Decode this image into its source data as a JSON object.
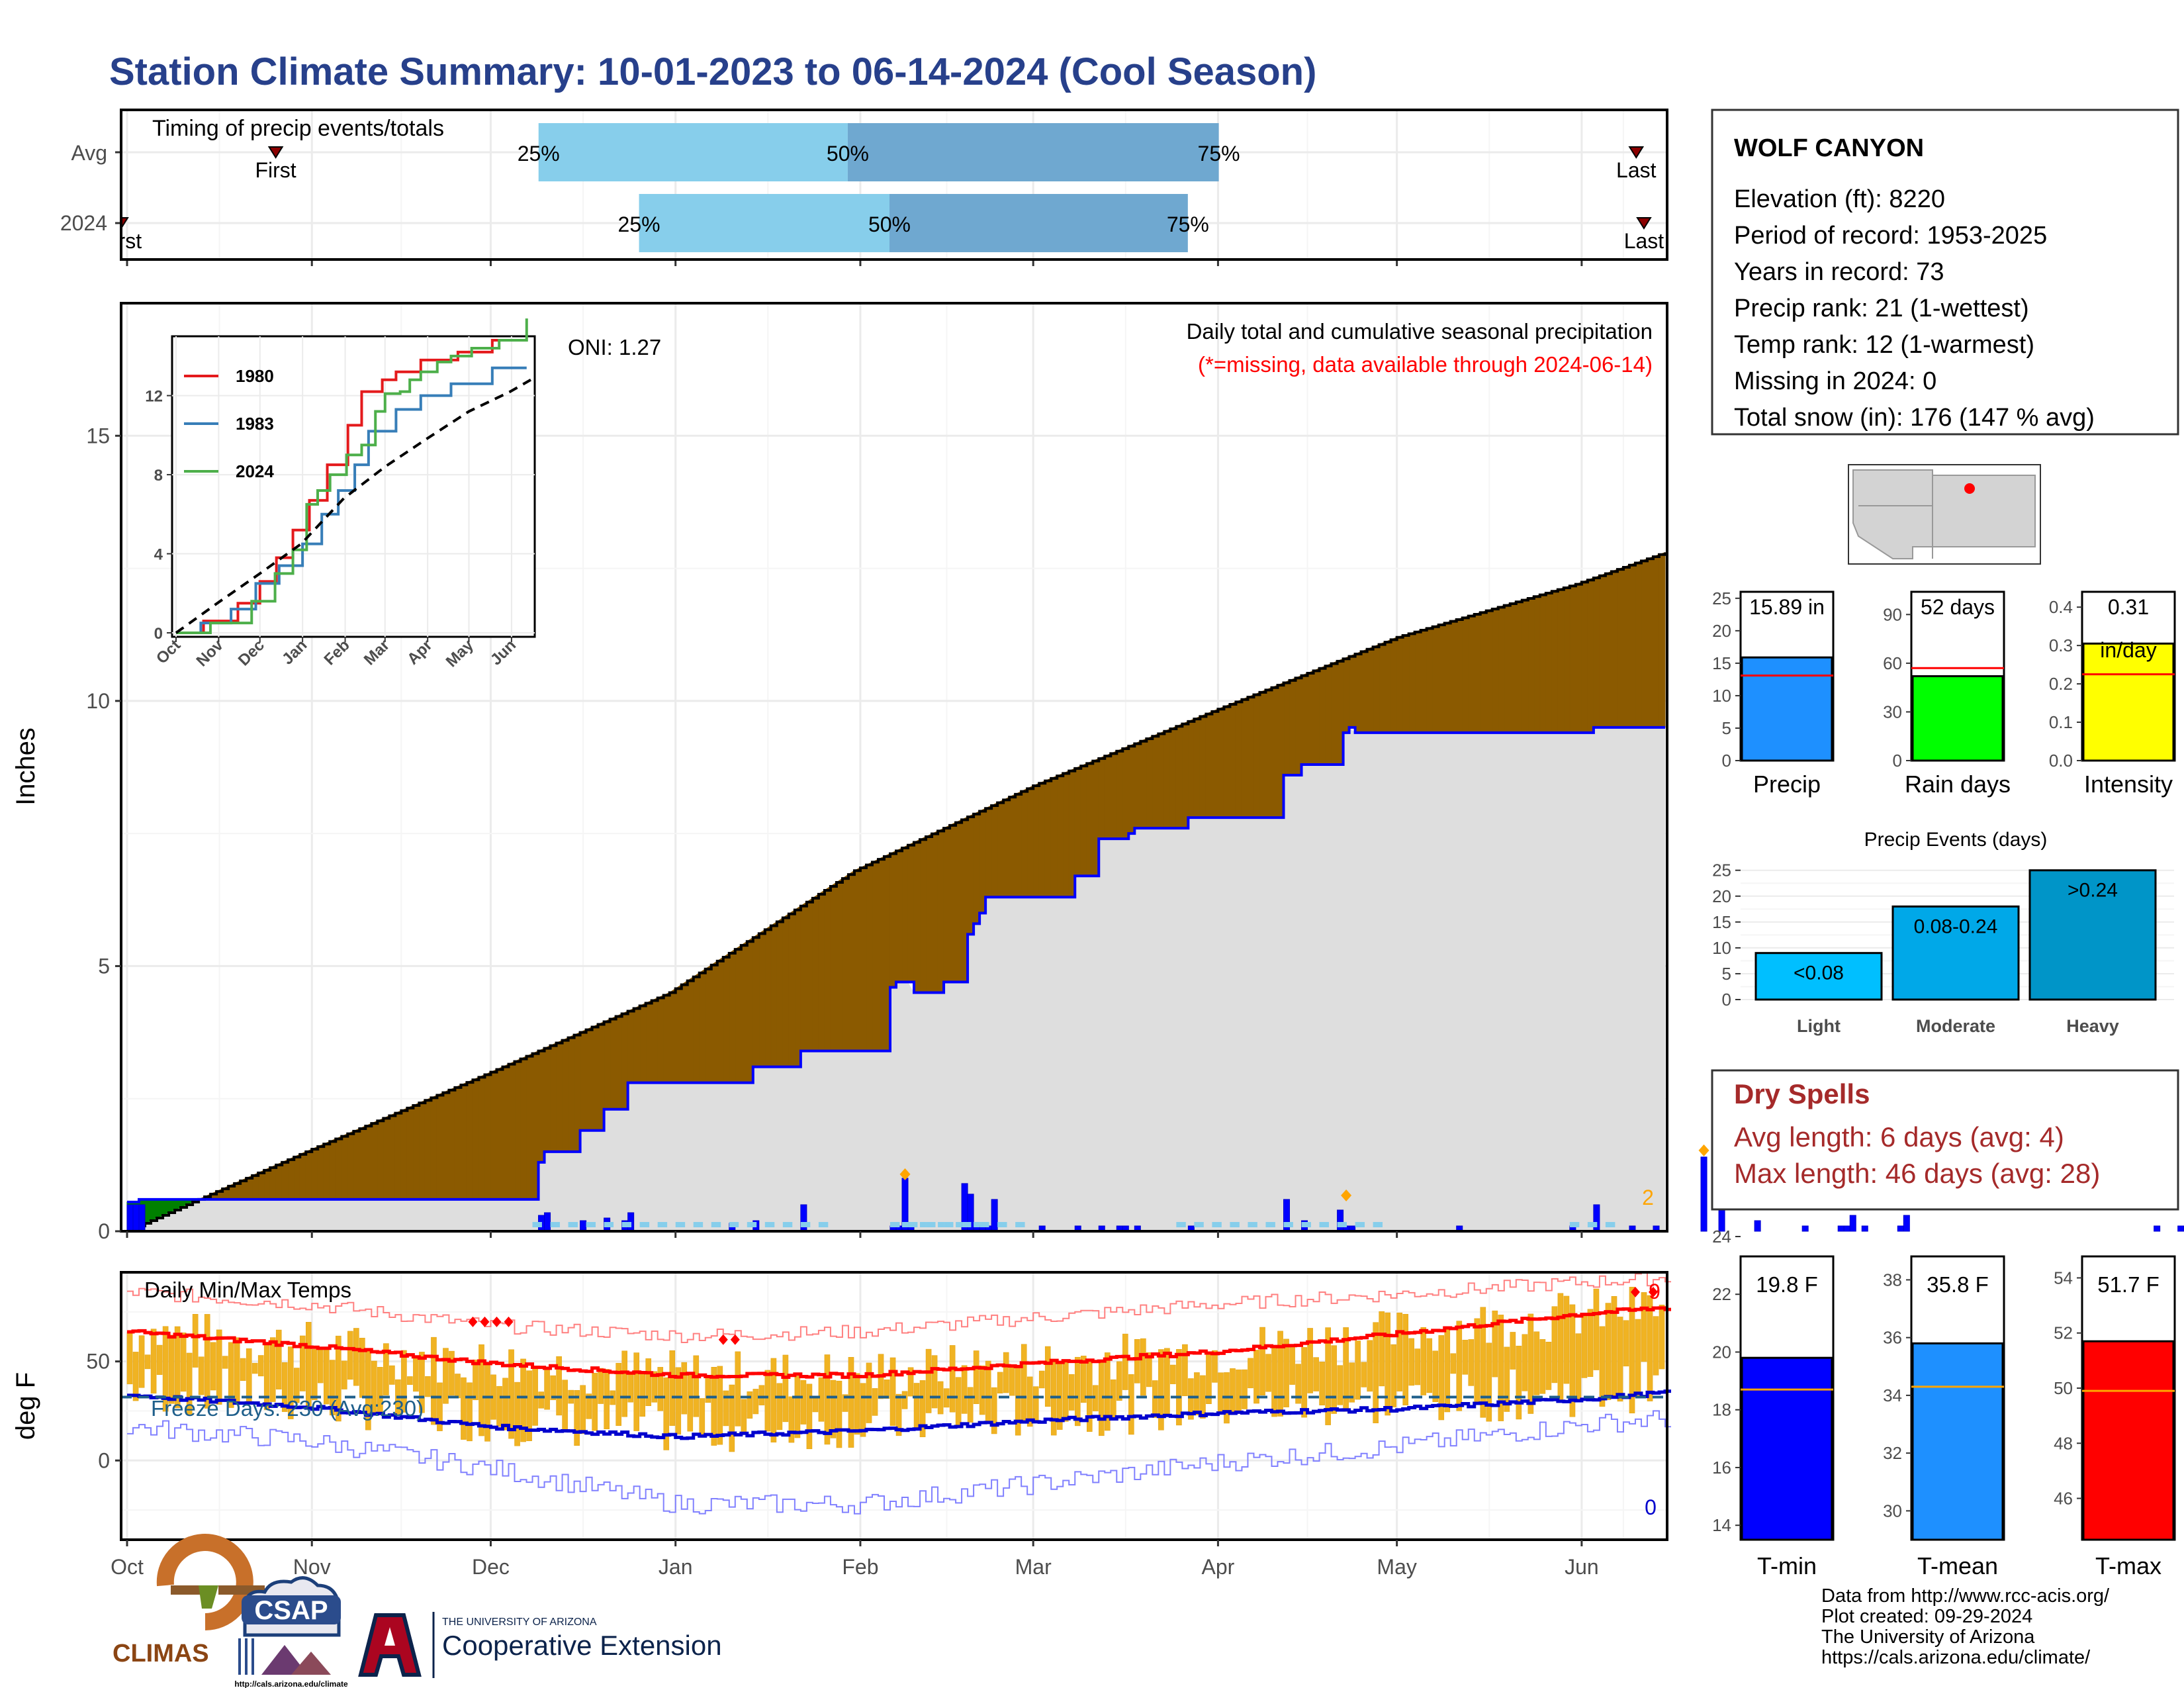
{
  "title": "Station Climate Summary: 10-01-2023 to 06-14-2024 (Cool Season)",
  "timing": {
    "label": "Timing of precip events/totals",
    "rows": [
      {
        "name": "Avg",
        "first_label": "First",
        "last_label": "Last",
        "first": 0.1,
        "last": 0.98,
        "p25": 0.27,
        "p50": 0.47,
        "p75": 0.71
      },
      {
        "name": "2024",
        "first_label": "First",
        "last_label": "Last",
        "first": 0.0,
        "last": 0.985,
        "p25": 0.335,
        "p50": 0.497,
        "p75": 0.69
      }
    ],
    "pct_labels": [
      "25%",
      "50%",
      "75%"
    ]
  },
  "precip": {
    "ylabel": "Inches",
    "annotation": "Daily total and cumulative seasonal precipitation",
    "missing_note": "(*=missing, data available through 2024-06-14)",
    "oni": "ONI: 1.27",
    "end_count": "2",
    "yticks": [
      "0",
      "5",
      "10",
      "15"
    ],
    "months": [
      "Oct",
      "Nov",
      "Dec",
      "Jan",
      "Feb",
      "Mar",
      "Apr",
      "May",
      "Jun"
    ]
  },
  "temps": {
    "label": "Daily Min/Max Temps",
    "ylabel": "deg F",
    "freeze": "Freeze Days: 230 (Avg:230)",
    "high_count": "9",
    "low_count": "0",
    "yticks": [
      "0",
      "50"
    ]
  },
  "inset": {
    "yticks": [
      "0",
      "4",
      "8",
      "12"
    ],
    "months": [
      "Oct",
      "Nov",
      "Dec",
      "Jan",
      "Feb",
      "Mar",
      "Apr",
      "May",
      "Jun"
    ],
    "legend": [
      {
        "name": "1980",
        "color": "#e41a1c"
      },
      {
        "name": "1983",
        "color": "#377eb8"
      },
      {
        "name": "2024",
        "color": "#4daf4a"
      }
    ]
  },
  "station": {
    "name": "WOLF CANYON",
    "lines": [
      "Elevation (ft): 8220",
      "Period of record: 1953-2025",
      "Years in record: 73",
      "Precip rank: 21 (1-wettest)",
      "Temp rank: 12 (1-warmest)",
      "Missing in 2024: 0",
      "Total snow (in): 176 (147 % avg)"
    ]
  },
  "mini_bars": [
    {
      "name": "Precip",
      "value_label": "15.89 in",
      "value": 15.89,
      "avg": 13.1,
      "ymax": 26,
      "yticks": [
        "0",
        "5",
        "10",
        "15",
        "20",
        "25"
      ],
      "color": "#1e90ff"
    },
    {
      "name": "Rain days",
      "value_label": "52 days",
      "value": 52,
      "avg": 57,
      "ymax": 104,
      "yticks": [
        "0",
        "30",
        "60",
        "90"
      ],
      "color": "#00ff00"
    },
    {
      "name": "Intensity",
      "value_label": "0.31",
      "unit_label": "in/day",
      "value": 0.305,
      "avg": 0.225,
      "ymax": 0.44,
      "yticks": [
        "0.0",
        "0.1",
        "0.2",
        "0.3",
        "0.4"
      ],
      "color": "#ffff00"
    }
  ],
  "events": {
    "title": "Precip Events (days)",
    "yticks": [
      "0",
      "5",
      "10",
      "15",
      "20",
      "25"
    ],
    "bars": [
      {
        "name": "Light",
        "label": "<0.08",
        "value": 9,
        "color": "#00bfff"
      },
      {
        "name": "Moderate",
        "label": "0.08-0.24",
        "value": 18,
        "color": "#00a8e8"
      },
      {
        "name": "Heavy",
        "label": ">0.24",
        "value": 25,
        "color": "#0095c8"
      }
    ]
  },
  "dry_spells": {
    "title": "Dry Spells",
    "avg": "Avg length: 6 days (avg: 4)",
    "max": "Max length: 46 days (avg: 28)"
  },
  "temp_bars": [
    {
      "name": "T-min",
      "value_label": "19.8 F",
      "value": 19.8,
      "avg": 18.7,
      "ymin": 13.5,
      "ymax": 24,
      "yticks": [
        "14",
        "16",
        "18",
        "20",
        "22",
        "24"
      ],
      "color": "#0000ff"
    },
    {
      "name": "T-mean",
      "value_label": "35.8 F",
      "value": 35.8,
      "avg": 34.3,
      "ymin": 29,
      "ymax": 39.5,
      "yticks": [
        "30",
        "32",
        "34",
        "36",
        "38"
      ],
      "color": "#1e90ff"
    },
    {
      "name": "T-max",
      "value_label": "51.7 F",
      "value": 51.7,
      "avg": 49.9,
      "ymin": 44.5,
      "ymax": 55.5,
      "yticks": [
        "46",
        "48",
        "50",
        "52",
        "54"
      ],
      "color": "#ff0000"
    }
  ],
  "logos": {
    "climas": "CLIMAS",
    "csap": "CSAP",
    "csap_url": "http://cals.arizona.edu/climate",
    "ua_small": "THE UNIVERSITY OF ARIZONA",
    "ua_big": "Cooperative Extension"
  },
  "credits": [
    "Data from http://www.rcc-acis.org/",
    "Plot created: 09-29-2024",
    "The University of Arizona",
    "https://cals.arizona.edu/climate/"
  ],
  "chart_data": [
    {
      "type": "area",
      "title": "Daily total and cumulative seasonal precipitation",
      "ylabel": "Inches",
      "ylim": [
        0,
        17.5
      ],
      "x_unit": "days since 10-01-2023",
      "series": [
        {
          "name": "cumulative",
          "x": [
            0,
            2,
            3,
            21,
            39,
            53,
            69,
            70,
            76,
            80,
            84,
            101,
            105,
            112,
            113,
            127,
            128,
            129,
            131,
            132,
            137,
            140,
            141,
            142,
            143,
            144,
            159,
            163,
            166,
            168,
            169,
            178,
            193,
            194,
            196,
            197,
            204,
            205,
            206,
            223,
            242,
            246,
            263,
            264,
            267,
            273,
            277,
            282,
            286,
            287,
            288,
            289,
            290,
            297,
            298,
            340,
            341,
            344,
            347,
            354,
            356,
            357
          ],
          "y": [
            0.55,
            0.6,
            0.6,
            0.6,
            0.6,
            0.6,
            1.3,
            1.5,
            1.9,
            2.3,
            2.8,
            2.8,
            3.1,
            3.1,
            3.4,
            3.4,
            4.6,
            4.7,
            4.7,
            4.5,
            4.7,
            4.7,
            5.6,
            5.8,
            6.0,
            6.3,
            6.7,
            7.4,
            7.4,
            7.5,
            7.6,
            7.8,
            7.8,
            8.6,
            8.6,
            8.8,
            9.4,
            9.5,
            9.4,
            9.4,
            9.4,
            9.5,
            10.0,
            10.9,
            11.0,
            12.6,
            12.6,
            13.3,
            13.4,
            13.8,
            14.0,
            14.1,
            14.2,
            14.2,
            14.7,
            14.7,
            14.8,
            15.0,
            15.0,
            15.6,
            15.9,
            15.9
          ]
        },
        {
          "name": "average",
          "x": [
            0,
            30,
            61,
            91,
            122,
            152,
            182,
            213,
            243,
            258
          ],
          "y": [
            0.0,
            1.5,
            3.0,
            4.5,
            6.8,
            8.4,
            9.8,
            11.2,
            12.2,
            12.8
          ]
        }
      ],
      "daily": {
        "x": [
          0,
          1,
          2,
          69,
          70,
          76,
          80,
          83,
          84,
          101,
          105,
          113,
          128,
          129,
          130,
          131,
          140,
          141,
          142,
          143,
          144,
          145,
          153,
          159,
          163,
          166,
          167,
          169,
          178,
          194,
          197,
          203,
          204,
          205,
          223,
          242,
          246,
          252,
          256,
          264,
          267,
          273,
          281,
          287,
          288,
          289,
          291,
          297,
          298,
          340,
          344,
          347,
          354,
          356
        ],
        "y": [
          0.5,
          0.5,
          0.5,
          0.3,
          0.35,
          0.2,
          0.25,
          0.2,
          0.35,
          0.15,
          0.2,
          0.5,
          0.1,
          0.1,
          1.0,
          0.1,
          0.9,
          0.7,
          0.1,
          0.1,
          0.1,
          0.6,
          0.1,
          0.1,
          0.1,
          0.1,
          0.1,
          0.1,
          0.1,
          0.6,
          0.2,
          0.4,
          0.1,
          0.1,
          0.1,
          0.1,
          0.5,
          0.1,
          0.1,
          1.4,
          0.6,
          0.2,
          0.1,
          0.1,
          0.1,
          0.3,
          0.1,
          0.1,
          0.3,
          0.1,
          0.1,
          0.1,
          0.3,
          0.4
        ]
      }
    },
    {
      "type": "line",
      "title": "inset cumulative comparison",
      "ylim": [
        0,
        14.8
      ],
      "x_unit": "days since Oct 1",
      "series": [
        {
          "name": "1980",
          "x": [
            0,
            20,
            45,
            61,
            73,
            85,
            97,
            110,
            125,
            135,
            150,
            160,
            178,
            205,
            230,
            255
          ],
          "y": [
            0,
            0.6,
            1.5,
            2.6,
            3.8,
            5.2,
            6.7,
            8.5,
            10.5,
            12.2,
            12.8,
            13.2,
            13.8,
            14.2,
            14.8,
            14.8
          ]
        },
        {
          "name": "1983",
          "x": [
            0,
            18,
            40,
            58,
            75,
            92,
            106,
            118,
            130,
            140,
            160,
            178,
            200,
            230,
            255
          ],
          "y": [
            0,
            0.5,
            1.2,
            2.5,
            3.4,
            4.5,
            6.0,
            7.2,
            8.5,
            10.2,
            11.3,
            12.0,
            12.6,
            13.4,
            13.4
          ]
        },
        {
          "name": "2024",
          "x": [
            0,
            25,
            55,
            72,
            85,
            95,
            103,
            112,
            124,
            135,
            145,
            152,
            163,
            170,
            178,
            190,
            200,
            215,
            235,
            255
          ],
          "y": [
            0,
            0.5,
            1.6,
            3.0,
            4.2,
            6.5,
            7.2,
            8.0,
            9.0,
            9.5,
            11.2,
            12.1,
            12.2,
            12.8,
            13.2,
            13.7,
            14.0,
            14.4,
            14.8,
            15.9
          ]
        },
        {
          "name": "avg",
          "x": [
            0,
            30,
            61,
            91,
            122,
            152,
            182,
            213,
            243,
            258
          ],
          "y": [
            0,
            1.5,
            3.0,
            4.5,
            6.8,
            8.4,
            9.8,
            11.2,
            12.2,
            12.8
          ]
        }
      ]
    },
    {
      "type": "bar",
      "title": "Daily Min/Max Temps",
      "ylabel": "deg F",
      "ylim": [
        -40,
        95
      ],
      "series": [
        {
          "name": "avg max",
          "x": [
            0,
            30,
            61,
            92,
            123,
            152,
            183,
            213,
            244,
            257
          ],
          "y": [
            65,
            58,
            49,
            43,
            43,
            49,
            55,
            64,
            74,
            77
          ]
        },
        {
          "name": "avg min",
          "x": [
            0,
            30,
            61,
            92,
            123,
            152,
            183,
            213,
            244,
            257
          ],
          "y": [
            33,
            27,
            17,
            12,
            15,
            20,
            24,
            26,
            31,
            34
          ]
        },
        {
          "name": "record high",
          "x": [
            0,
            30,
            61,
            92,
            123,
            152,
            183,
            213,
            244,
            257
          ],
          "y": [
            85,
            79,
            68,
            63,
            65,
            72,
            79,
            84,
            90,
            92
          ]
        },
        {
          "name": "record low",
          "x": [
            0,
            30,
            61,
            92,
            123,
            152,
            183,
            213,
            244,
            257
          ],
          "y": [
            17,
            10,
            -4,
            -22,
            -22,
            -12,
            -1,
            7,
            18,
            21
          ]
        }
      ]
    }
  ]
}
